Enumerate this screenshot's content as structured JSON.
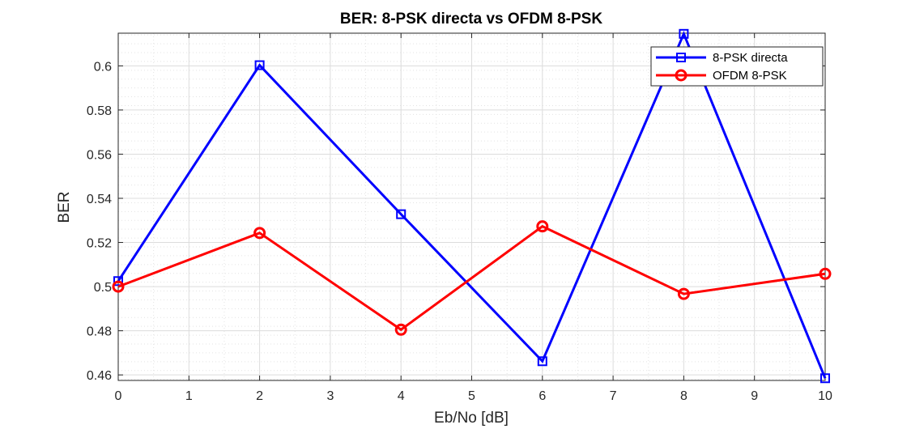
{
  "chart_data": {
    "type": "line",
    "title": "BER: 8-PSK directa vs OFDM 8-PSK",
    "xlabel": "Eb/No [dB]",
    "ylabel": "BER",
    "xlim": [
      0,
      10
    ],
    "ylim": [
      0.4575,
      0.6148
    ],
    "xticks": [
      0,
      1,
      2,
      3,
      4,
      5,
      6,
      7,
      8,
      9,
      10
    ],
    "yticks": [
      0.46,
      0.48,
      0.5,
      0.52,
      0.54,
      0.56,
      0.58,
      0.6
    ],
    "ytick_labels": [
      "0.46",
      "0.48",
      "0.5",
      "0.52",
      "0.54",
      "0.56",
      "0.58",
      "0.6"
    ],
    "grid": true,
    "minor_grid": true,
    "legend_position": "top-right",
    "series": [
      {
        "name": "8-PSK directa",
        "color": "#0000ff",
        "marker": "square",
        "x": [
          0,
          2,
          4,
          6,
          8,
          10
        ],
        "values": [
          0.5025,
          0.6003,
          0.5328,
          0.4662,
          0.6145,
          0.4585
        ]
      },
      {
        "name": "OFDM 8-PSK",
        "color": "#ff0000",
        "marker": "circle",
        "x": [
          0,
          2,
          4,
          6,
          8,
          10
        ],
        "values": [
          0.5,
          0.5243,
          0.4805,
          0.5273,
          0.4967,
          0.5058
        ]
      }
    ]
  }
}
